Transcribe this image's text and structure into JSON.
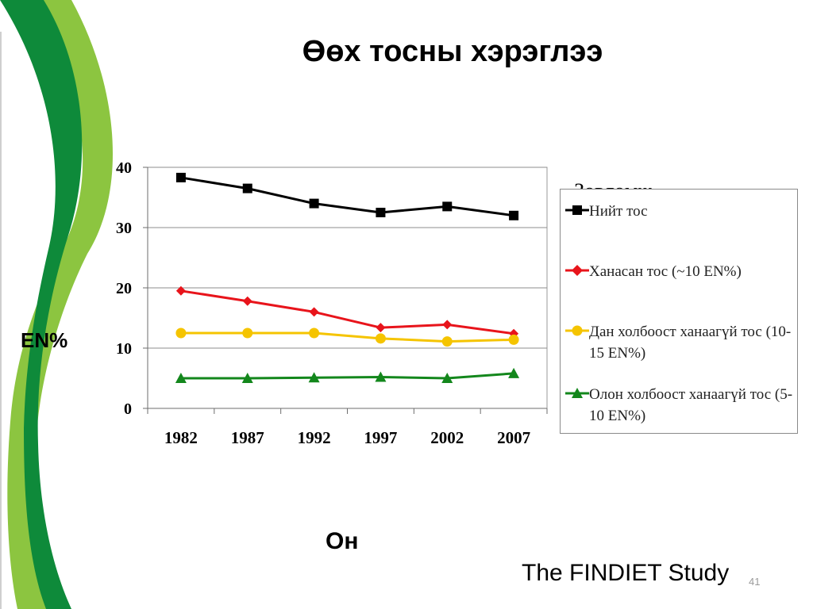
{
  "slide": {
    "title": "Өөх тосны хэрэглээ",
    "y_axis_label": "EN%",
    "x_axis_label": "Он",
    "source": "The FINDIET Study",
    "page_number": "41"
  },
  "legend": {
    "title": "Зөвлөмж",
    "items": [
      {
        "label": "Нийт тос",
        "color": "#000000",
        "marker": "square"
      },
      {
        "label": "Ханасан тос (~10 EN%)",
        "color": "#e8141b",
        "marker": "diamond"
      },
      {
        "label": "Дан холбоост ханаагүй тос (10-15 EN%)",
        "color": "#f5c400",
        "marker": "circle"
      },
      {
        "label": "Олон холбоост ханаагүй тос (5-10 EN%)",
        "color": "#13871c",
        "marker": "triangle"
      }
    ]
  },
  "chart_data": {
    "type": "line",
    "categories": [
      "1982",
      "1987",
      "1992",
      "1997",
      "2002",
      "2007"
    ],
    "series": [
      {
        "name": "Нийт тос",
        "values": [
          38.3,
          36.5,
          34.0,
          32.5,
          33.5,
          32.0
        ]
      },
      {
        "name": "Ханасан тос (~10 EN%)",
        "values": [
          19.5,
          17.8,
          16.0,
          13.4,
          13.9,
          12.4
        ]
      },
      {
        "name": "Дан холбоост ханаагүй тос (10-15 EN%)",
        "values": [
          12.5,
          12.5,
          12.5,
          11.6,
          11.1,
          11.4
        ]
      },
      {
        "name": "Олон холбоост ханаагүй тос (5-10 EN%)",
        "values": [
          5.0,
          5.0,
          5.1,
          5.2,
          5.0,
          5.8
        ]
      }
    ],
    "ylim": [
      0,
      40
    ],
    "yticks": [
      0,
      10,
      20,
      30,
      40
    ],
    "grid": true,
    "colors": {
      "decor_dark_green": "#0e8a3a",
      "decor_light_green": "#8cc540"
    }
  }
}
